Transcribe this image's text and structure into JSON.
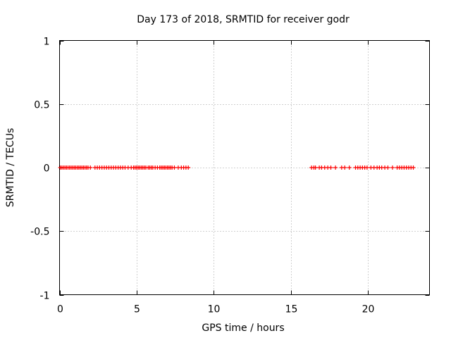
{
  "chart_data": {
    "type": "scatter",
    "title": "Day 173 of 2018, SRMTID for receiver godr",
    "xlabel": "GPS time / hours",
    "ylabel": "SRMTID / TECUs",
    "xlim": [
      0,
      24
    ],
    "ylim": [
      -1,
      1
    ],
    "x_ticks": [
      0,
      5,
      10,
      15,
      20
    ],
    "x_tick_labels": [
      "0",
      "5",
      "10",
      "15",
      "20"
    ],
    "y_ticks": [
      -1,
      -0.5,
      0,
      0.5,
      1
    ],
    "y_tick_labels": [
      "-1",
      "-0.5",
      "0",
      "0.5",
      "1"
    ],
    "grid": true,
    "marker": "+",
    "color": "#ff0000",
    "series": [
      {
        "name": "SRMTID",
        "x": [
          0.05,
          0.15,
          0.25,
          0.35,
          0.45,
          0.55,
          0.65,
          0.75,
          0.85,
          0.95,
          1.05,
          1.15,
          1.25,
          1.35,
          1.45,
          1.55,
          1.65,
          1.75,
          1.85,
          2.0,
          2.3,
          2.45,
          2.6,
          2.75,
          2.9,
          3.05,
          3.2,
          3.35,
          3.5,
          3.65,
          3.8,
          3.95,
          4.1,
          4.25,
          4.45,
          4.65,
          4.8,
          4.9,
          5.0,
          5.1,
          5.2,
          5.3,
          5.4,
          5.5,
          5.6,
          5.75,
          5.85,
          5.95,
          6.05,
          6.2,
          6.35,
          6.5,
          6.6,
          6.7,
          6.8,
          6.9,
          7.0,
          7.1,
          7.2,
          7.3,
          7.45,
          7.7,
          7.9,
          8.05,
          8.2,
          8.35,
          16.35,
          16.5,
          16.6,
          16.85,
          17.0,
          17.2,
          17.4,
          17.6,
          17.9,
          18.3,
          18.5,
          18.8,
          19.2,
          19.35,
          19.5,
          19.65,
          19.8,
          19.95,
          20.2,
          20.4,
          20.6,
          20.75,
          20.9,
          21.1,
          21.3,
          21.6,
          21.9,
          22.05,
          22.2,
          22.35,
          22.5,
          22.65,
          22.8,
          22.95
        ],
        "y": [
          0,
          0,
          0,
          0,
          0,
          0,
          0,
          0,
          0,
          0,
          0,
          0,
          0,
          0,
          0,
          0,
          0,
          0,
          0,
          0,
          0,
          0,
          0,
          0,
          0,
          0,
          0,
          0,
          0,
          0,
          0,
          0,
          0,
          0,
          0,
          0,
          0,
          0,
          0,
          0,
          0,
          0,
          0,
          0,
          0,
          0,
          0,
          0,
          0,
          0,
          0,
          0,
          0,
          0,
          0,
          0,
          0,
          0,
          0,
          0,
          0,
          0,
          0,
          0,
          0,
          0,
          0,
          0,
          0,
          0,
          0,
          0,
          0,
          0,
          0,
          0,
          0,
          0,
          0,
          0,
          0,
          0,
          0,
          0,
          0,
          0,
          0,
          0,
          0,
          0,
          0,
          0,
          0,
          0,
          0,
          0,
          0,
          0,
          0,
          0
        ]
      }
    ]
  }
}
